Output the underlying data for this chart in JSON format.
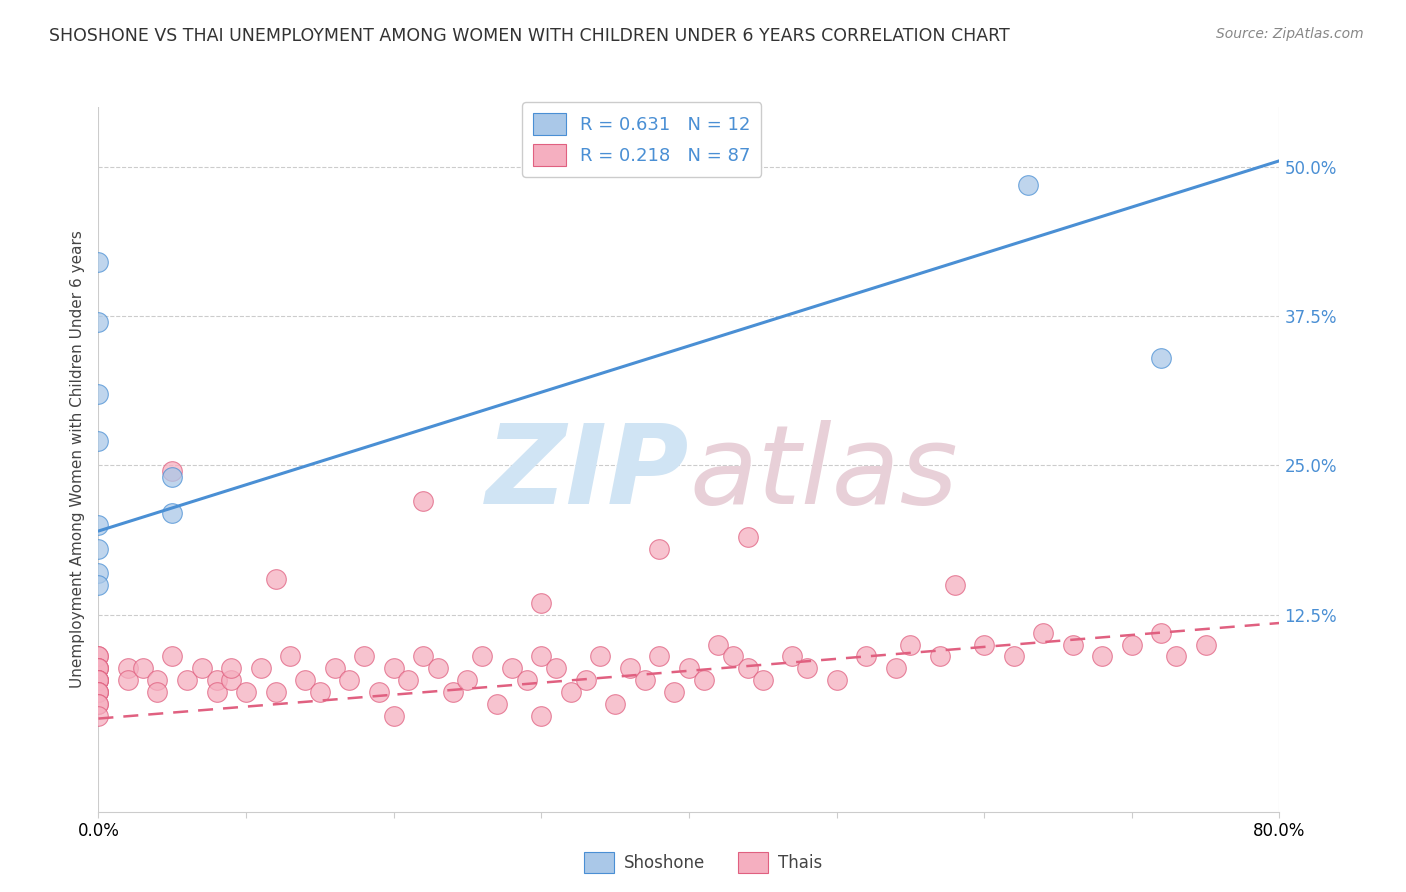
{
  "title": "SHOSHONE VS THAI UNEMPLOYMENT AMONG WOMEN WITH CHILDREN UNDER 6 YEARS CORRELATION CHART",
  "source": "Source: ZipAtlas.com",
  "ylabel": "Unemployment Among Women with Children Under 6 years",
  "xlim": [
    0.0,
    0.8
  ],
  "ylim": [
    -0.04,
    0.55
  ],
  "yticks": [
    0.125,
    0.25,
    0.375,
    0.5
  ],
  "xtick_positions": [
    0.0,
    0.1,
    0.2,
    0.3,
    0.4,
    0.5,
    0.6,
    0.7,
    0.8
  ],
  "shoshone_color": "#aac8e8",
  "shoshone_line_color": "#4a8fd4",
  "thai_color": "#f5afc0",
  "thai_line_color": "#e06080",
  "grid_color": "#cccccc",
  "shoshone_R": 0.631,
  "shoshone_N": 12,
  "thai_R": 0.218,
  "thai_N": 87,
  "legend_label_shoshone": "Shoshone",
  "legend_label_thai": "Thais",
  "watermark_zip": "ZIP",
  "watermark_atlas": "atlas",
  "watermark_color": "#d0e4f4",
  "sh_line_x0": 0.0,
  "sh_line_y0": 0.195,
  "sh_line_x1": 0.8,
  "sh_line_y1": 0.505,
  "th_line_x0": 0.0,
  "th_line_y0": 0.038,
  "th_line_x1": 0.8,
  "th_line_y1": 0.118,
  "shoshone_pts_x": [
    0.0,
    0.0,
    0.0,
    0.0,
    0.0,
    0.0,
    0.0,
    0.0,
    0.05,
    0.05,
    0.63,
    0.72
  ],
  "shoshone_pts_y": [
    0.42,
    0.37,
    0.31,
    0.27,
    0.2,
    0.18,
    0.16,
    0.15,
    0.24,
    0.21,
    0.485,
    0.34
  ],
  "thai_pts_x": [
    0.0,
    0.0,
    0.0,
    0.0,
    0.0,
    0.0,
    0.0,
    0.0,
    0.0,
    0.0,
    0.0,
    0.0,
    0.0,
    0.0,
    0.0,
    0.02,
    0.02,
    0.03,
    0.04,
    0.04,
    0.05,
    0.06,
    0.07,
    0.08,
    0.08,
    0.09,
    0.09,
    0.1,
    0.11,
    0.12,
    0.13,
    0.14,
    0.15,
    0.16,
    0.17,
    0.18,
    0.19,
    0.2,
    0.2,
    0.21,
    0.22,
    0.23,
    0.24,
    0.25,
    0.26,
    0.27,
    0.28,
    0.29,
    0.3,
    0.3,
    0.31,
    0.32,
    0.33,
    0.34,
    0.35,
    0.36,
    0.37,
    0.38,
    0.39,
    0.4,
    0.41,
    0.42,
    0.43,
    0.44,
    0.45,
    0.47,
    0.48,
    0.5,
    0.52,
    0.54,
    0.55,
    0.57,
    0.6,
    0.62,
    0.64,
    0.66,
    0.68,
    0.7,
    0.72,
    0.73,
    0.75,
    0.22,
    0.44,
    0.58,
    0.12,
    0.3,
    0.05,
    0.38
  ],
  "thai_pts_y": [
    0.09,
    0.09,
    0.08,
    0.08,
    0.08,
    0.07,
    0.07,
    0.07,
    0.07,
    0.06,
    0.06,
    0.06,
    0.05,
    0.05,
    0.04,
    0.08,
    0.07,
    0.08,
    0.07,
    0.06,
    0.09,
    0.07,
    0.08,
    0.07,
    0.06,
    0.07,
    0.08,
    0.06,
    0.08,
    0.06,
    0.09,
    0.07,
    0.06,
    0.08,
    0.07,
    0.09,
    0.06,
    0.08,
    0.04,
    0.07,
    0.09,
    0.08,
    0.06,
    0.07,
    0.09,
    0.05,
    0.08,
    0.07,
    0.09,
    0.04,
    0.08,
    0.06,
    0.07,
    0.09,
    0.05,
    0.08,
    0.07,
    0.09,
    0.06,
    0.08,
    0.07,
    0.1,
    0.09,
    0.08,
    0.07,
    0.09,
    0.08,
    0.07,
    0.09,
    0.08,
    0.1,
    0.09,
    0.1,
    0.09,
    0.11,
    0.1,
    0.09,
    0.1,
    0.11,
    0.09,
    0.1,
    0.22,
    0.19,
    0.15,
    0.155,
    0.135,
    0.245,
    0.18
  ]
}
